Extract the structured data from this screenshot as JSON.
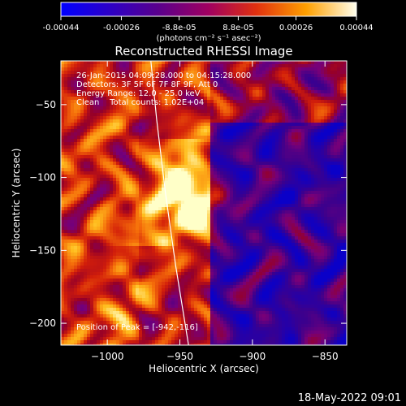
{
  "colorbar": {
    "tick_labels": [
      "-0.00044",
      "-0.00026",
      "-8.8e-05",
      "8.8e-05",
      "0.00026",
      "0.00044"
    ],
    "tick_values": [
      -0.00044,
      -0.00026,
      -8.8e-05,
      8.8e-05,
      0.00026,
      0.00044
    ],
    "range": [
      -0.00044,
      0.00044
    ],
    "units": "(photons cm⁻² s⁻¹ asec⁻²)"
  },
  "chart_data": {
    "type": "heatmap",
    "title": "Reconstructed RHESSI Image",
    "xlabel": "Heliocentric X (arcsec)",
    "ylabel": "Heliocentric Y (arcsec)",
    "xlim": [
      -1032,
      -835
    ],
    "ylim": [
      -215,
      -20
    ],
    "x_ticks": [
      -1000,
      -950,
      -900,
      -850
    ],
    "y_ticks": [
      -50,
      -100,
      -150,
      -200
    ],
    "x_tick_labels": [
      "−1000",
      "−950",
      "−900",
      "−850"
    ],
    "y_tick_labels": [
      "−50",
      "−100",
      "−150",
      "−200"
    ],
    "info_lines": [
      "26-Jan-2015 04:09:28.000 to 04:15:28.000",
      "Detectors: 3F 5F 6F 7F 8F 9F, Att 0",
      "Energy Range: 12.0 - 25.0 keV",
      "Clean    Total counts: 1.02E+04"
    ],
    "peak_label": "Position of Peak = [-942,-116]",
    "peak": [
      -942,
      -116
    ],
    "limb_points": [
      [
        -970,
        -20
      ],
      [
        -966,
        -60
      ],
      [
        -960,
        -110
      ],
      [
        -953,
        -160
      ],
      [
        -944,
        -215
      ]
    ],
    "colormap": [
      "#0000ff",
      "#3f007f",
      "#7f007f",
      "#c4201a",
      "#f08000",
      "#ffff00",
      "#ffffff"
    ]
  },
  "timestamp": "18-May-2022 09:01"
}
